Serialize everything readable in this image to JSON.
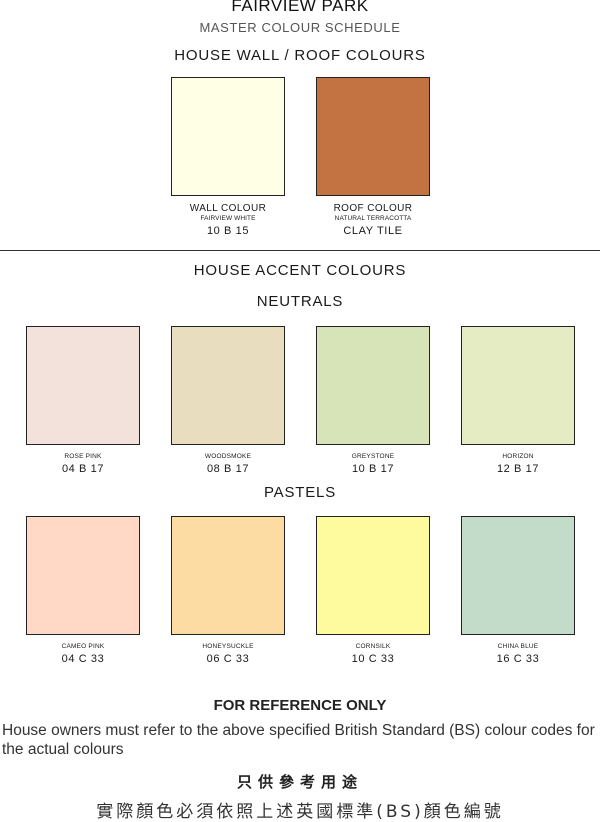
{
  "header": {
    "title": "FAIRVIEW  PARK",
    "subtitle": "MASTER COLOUR SCHEDULE"
  },
  "house_wall_roof": {
    "heading": "HOUSE  WALL / ROOF COLOURS",
    "swatches": [
      {
        "name": "WALL COLOUR",
        "sub": "FAIRVIEW WHITE",
        "code": "10 B 15",
        "color": "#FFFFE6"
      },
      {
        "name": "ROOF COLOUR",
        "sub": "NATURAL TERRACOTTA",
        "code": "CLAY TILE",
        "color": "#C37341"
      }
    ]
  },
  "accent": {
    "heading": "HOUSE  ACCENT COLOURS",
    "neutrals": {
      "heading": "NEUTRALS",
      "swatches": [
        {
          "name": "ROSE PINK",
          "code": "04 B 17",
          "color": "#F3E2DC"
        },
        {
          "name": "WOODSMOKE",
          "code": "08 B 17",
          "color": "#E8DEBF"
        },
        {
          "name": "GREYSTONE",
          "code": "10 B 17",
          "color": "#D7E4B7"
        },
        {
          "name": "HORIZON",
          "code": "12 B 17",
          "color": "#E5EBC2"
        }
      ]
    },
    "pastels": {
      "heading": "PASTELS",
      "swatches": [
        {
          "name": "CAMEO PINK",
          "code": "04 C 33",
          "color": "#FFD9C6"
        },
        {
          "name": "HONEYSUCKLE",
          "code": "06 C 33",
          "color": "#FDDCA3"
        },
        {
          "name": "CORNSILK",
          "code": "10 C 33",
          "color": "#FEFB9E"
        },
        {
          "name": "CHINA BLUE",
          "code": "16 C 33",
          "color": "#C3DCC9"
        }
      ]
    }
  },
  "notice": {
    "heading": "FOR REFERENCE ONLY",
    "body": "House owners must refer to the above specified British Standard (BS) colour codes for the actual colours",
    "heading_zh": "只供參考用途",
    "body_zh": "實際顏色必須依照上述英國標準(BS)顏色編號"
  }
}
